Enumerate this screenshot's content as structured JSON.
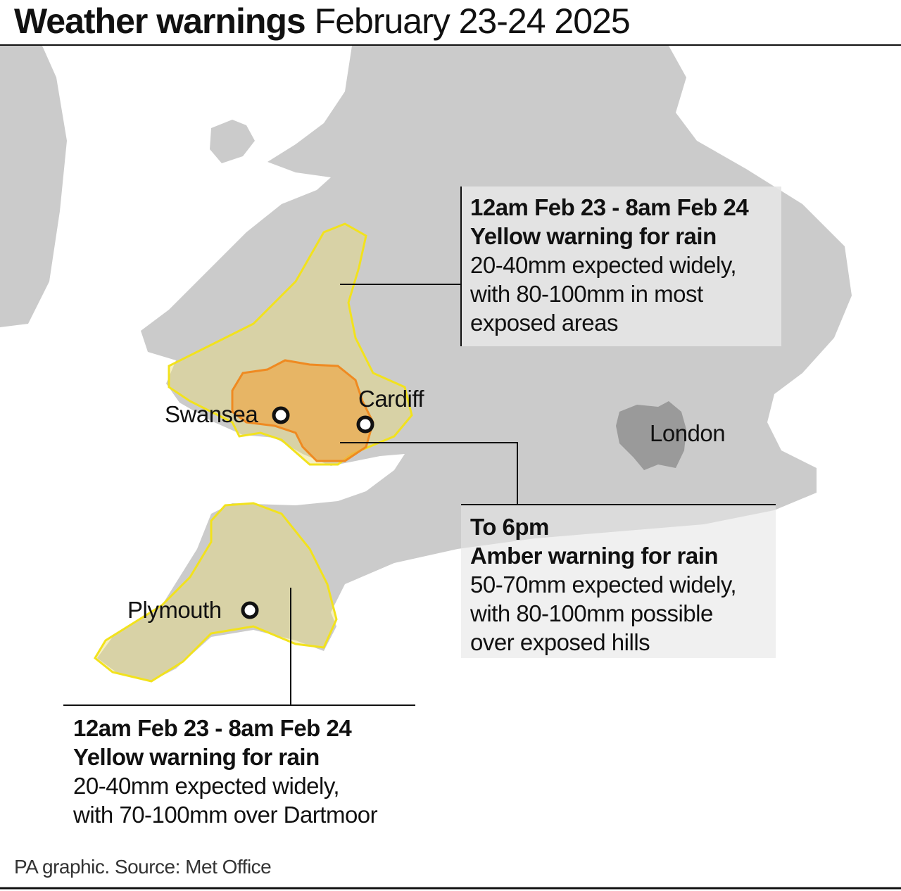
{
  "title": {
    "bold": "Weather warnings",
    "regular": "February 23-24 2025"
  },
  "colors": {
    "land": "#cbcbcb",
    "london": "#9a9a9a",
    "yellow_stroke": "#f2e21d",
    "yellow_fill": "#e9dc7a",
    "amber_stroke": "#ef8a21",
    "amber_fill": "#eea84a",
    "box_bg": "#e6e6e6"
  },
  "cities": {
    "swansea": "Swansea",
    "cardiff": "Cardiff",
    "plymouth": "Plymouth",
    "london": "London"
  },
  "warnings": [
    {
      "time": "12am Feb 23 - 8am Feb 24",
      "type": "Yellow warning for rain",
      "lines": [
        "20-40mm expected widely,",
        "with 80-100mm in most",
        "exposed areas"
      ]
    },
    {
      "time": "To 6pm",
      "type": "Amber warning for rain",
      "lines": [
        "50-70mm expected widely,",
        "with 80-100mm possible",
        "over exposed hills"
      ]
    },
    {
      "time": "12am Feb 23 - 8am Feb 24",
      "type": "Yellow warning for rain",
      "lines": [
        "20-40mm expected widely,",
        "with 70-100mm over Dartmoor"
      ]
    }
  ],
  "source": "PA graphic. Source: Met Office"
}
